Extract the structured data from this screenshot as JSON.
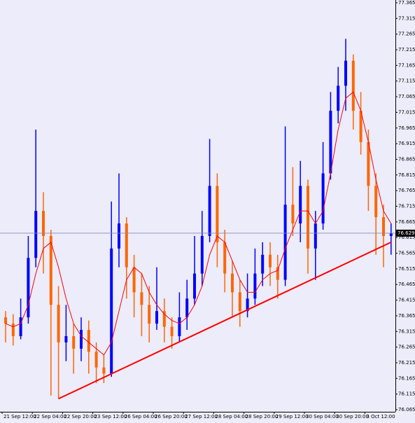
{
  "chart_data": {
    "type": "ohlc",
    "categories": [
      "21 Sep 12:00",
      null,
      null,
      null,
      "22 Sep 04:00",
      null,
      null,
      null,
      "22 Sep 20:00",
      null,
      null,
      null,
      "23 Sep 12:00",
      null,
      null,
      null,
      "26 Sep 04:00",
      null,
      null,
      null,
      "26 Sep 20:00",
      null,
      null,
      null,
      "27 Sep 12:00",
      null,
      null,
      null,
      "28 Sep 04:00",
      null,
      null,
      null,
      "28 Sep 20:00",
      null,
      null,
      null,
      "29 Sep 12:00",
      null,
      null,
      null,
      "30 Sep 04:00",
      null,
      null,
      null,
      "30 Sep 20:00",
      null,
      null,
      null,
      "3 Oct 12:00",
      null,
      null,
      null
    ],
    "open": [
      76.36,
      76.34,
      76.3,
      76.36,
      76.55,
      76.7,
      76.62,
      76.4,
      76.28,
      76.3,
      76.26,
      76.32,
      76.25,
      76.2,
      76.18,
      76.58,
      76.66,
      76.52,
      76.44,
      76.4,
      76.34,
      76.38,
      76.33,
      76.3,
      76.36,
      76.42,
      76.5,
      76.62,
      76.78,
      76.6,
      76.5,
      76.44,
      76.38,
      76.42,
      76.5,
      76.56,
      76.52,
      76.48,
      76.72,
      76.66,
      76.78,
      76.58,
      76.66,
      76.82,
      77.02,
      77.1,
      77.18,
      77.02,
      76.92,
      76.78,
      76.68,
      76.62
    ],
    "high": [
      76.38,
      76.37,
      76.42,
      76.62,
      76.96,
      76.76,
      76.64,
      76.46,
      76.4,
      76.34,
      76.36,
      76.35,
      76.28,
      76.24,
      76.73,
      76.82,
      76.68,
      76.56,
      76.5,
      76.46,
      76.52,
      76.42,
      76.36,
      76.44,
      76.48,
      76.62,
      76.7,
      76.93,
      76.82,
      76.64,
      76.54,
      76.48,
      76.5,
      76.58,
      76.6,
      76.6,
      76.56,
      76.97,
      76.84,
      76.86,
      76.8,
      76.7,
      76.92,
      77.08,
      77.16,
      77.25,
      77.2,
      77.08,
      76.96,
      76.82,
      76.72,
      76.66
    ],
    "low": [
      76.28,
      76.27,
      76.29,
      76.34,
      76.52,
      76.5,
      76.11,
      76.1,
      76.22,
      76.18,
      76.22,
      76.18,
      76.15,
      76.15,
      76.17,
      76.52,
      76.42,
      76.36,
      76.3,
      76.28,
      76.32,
      76.28,
      76.26,
      76.28,
      76.32,
      76.4,
      76.46,
      76.6,
      76.52,
      76.44,
      76.36,
      76.33,
      76.36,
      76.4,
      76.46,
      76.46,
      76.42,
      76.46,
      76.62,
      76.6,
      76.5,
      76.48,
      76.64,
      76.8,
      76.98,
      77.02,
      76.96,
      76.88,
      76.7,
      76.56,
      76.52,
      76.56
    ],
    "close": [
      76.34,
      76.3,
      76.36,
      76.55,
      76.7,
      76.62,
      76.4,
      76.28,
      76.3,
      76.26,
      76.32,
      76.25,
      76.2,
      76.18,
      76.58,
      76.66,
      76.52,
      76.44,
      76.4,
      76.34,
      76.38,
      76.33,
      76.3,
      76.36,
      76.42,
      76.5,
      76.62,
      76.78,
      76.6,
      76.5,
      76.44,
      76.38,
      76.42,
      76.5,
      76.56,
      76.52,
      76.48,
      76.72,
      76.66,
      76.78,
      76.58,
      76.66,
      76.82,
      77.02,
      77.1,
      77.18,
      77.02,
      76.92,
      76.78,
      76.68,
      76.62,
      76.629
    ],
    "up_color": "#0000ff",
    "down_color": "#ff6600",
    "overlay_line": {
      "color": "#ff0000",
      "values": [
        76.34,
        76.33,
        76.34,
        76.4,
        76.5,
        76.58,
        76.6,
        76.52,
        76.42,
        76.34,
        76.3,
        76.28,
        76.26,
        76.24,
        76.28,
        76.38,
        76.48,
        76.52,
        76.5,
        76.44,
        76.4,
        76.37,
        76.35,
        76.34,
        76.36,
        76.4,
        76.46,
        76.56,
        76.62,
        76.6,
        76.54,
        76.48,
        76.44,
        76.44,
        76.48,
        76.5,
        76.51,
        76.58,
        76.64,
        76.7,
        76.7,
        76.66,
        76.7,
        76.82,
        76.96,
        77.06,
        77.08,
        77.02,
        76.92,
        76.8,
        76.7,
        76.66
      ]
    },
    "trendline": {
      "color": "#ff0000",
      "start": [
        7,
        76.1
      ],
      "end": [
        51,
        76.6
      ]
    },
    "last_price": 76.629,
    "ylim": [
      76.065,
      77.365
    ],
    "yticks": [
      77.365,
      77.315,
      77.265,
      77.215,
      77.165,
      77.115,
      77.065,
      77.015,
      76.965,
      76.915,
      76.865,
      76.815,
      76.765,
      76.715,
      76.665,
      76.615,
      76.565,
      76.515,
      76.465,
      76.415,
      76.365,
      76.315,
      76.265,
      76.215,
      76.165,
      76.115,
      76.065
    ]
  }
}
